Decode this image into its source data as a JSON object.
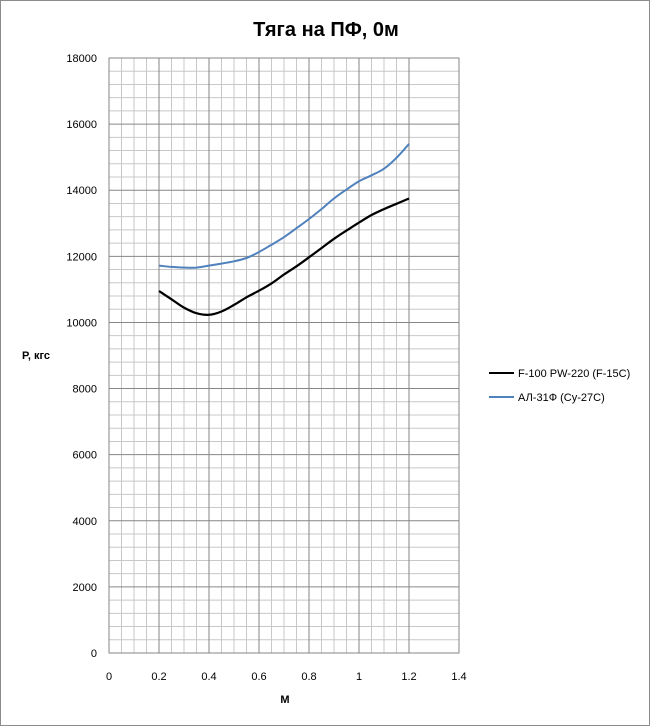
{
  "chart_data": {
    "type": "line",
    "title": "Тяга на ПФ, 0м",
    "xlabel": "M",
    "ylabel": "P, кгс",
    "xlim": [
      0,
      1.4
    ],
    "ylim": [
      0,
      18000
    ],
    "x_ticks": [
      "0",
      "0.2",
      "0.4",
      "0.6",
      "0.8",
      "1",
      "1.2",
      "1.4"
    ],
    "y_ticks": [
      "0",
      "2000",
      "4000",
      "6000",
      "8000",
      "10000",
      "12000",
      "14000",
      "16000",
      "18000"
    ],
    "grid": true,
    "legend_position": "right",
    "series": [
      {
        "name": "F-100 PW-220 (F-15C)",
        "color": "#000000",
        "points": [
          [
            0.2,
            10950
          ],
          [
            0.25,
            10700
          ],
          [
            0.3,
            10450
          ],
          [
            0.35,
            10280
          ],
          [
            0.4,
            10230
          ],
          [
            0.45,
            10330
          ],
          [
            0.5,
            10530
          ],
          [
            0.55,
            10760
          ],
          [
            0.6,
            10960
          ],
          [
            0.65,
            11180
          ],
          [
            0.7,
            11450
          ],
          [
            0.75,
            11700
          ],
          [
            0.8,
            11970
          ],
          [
            0.85,
            12250
          ],
          [
            0.9,
            12530
          ],
          [
            0.95,
            12780
          ],
          [
            1.0,
            13020
          ],
          [
            1.05,
            13250
          ],
          [
            1.1,
            13430
          ],
          [
            1.15,
            13590
          ],
          [
            1.2,
            13750
          ]
        ]
      },
      {
        "name": "АЛ-31Ф (Су-27С)",
        "color": "#4f81bd",
        "points": [
          [
            0.2,
            11720
          ],
          [
            0.25,
            11680
          ],
          [
            0.3,
            11660
          ],
          [
            0.35,
            11660
          ],
          [
            0.4,
            11720
          ],
          [
            0.45,
            11780
          ],
          [
            0.5,
            11850
          ],
          [
            0.55,
            11950
          ],
          [
            0.6,
            12130
          ],
          [
            0.65,
            12350
          ],
          [
            0.7,
            12580
          ],
          [
            0.75,
            12850
          ],
          [
            0.8,
            13130
          ],
          [
            0.85,
            13430
          ],
          [
            0.9,
            13750
          ],
          [
            0.95,
            14020
          ],
          [
            1.0,
            14270
          ],
          [
            1.05,
            14450
          ],
          [
            1.1,
            14650
          ],
          [
            1.15,
            14980
          ],
          [
            1.2,
            15400
          ]
        ]
      }
    ]
  }
}
